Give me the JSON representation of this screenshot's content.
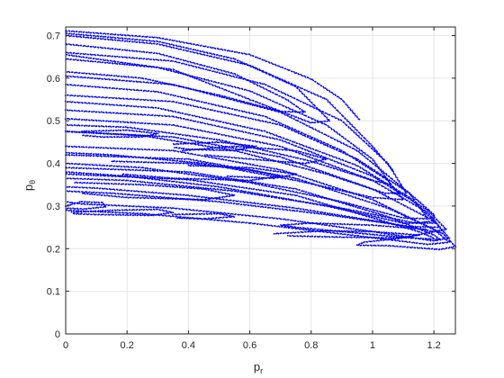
{
  "chart_data": {
    "type": "scatter",
    "title": "",
    "xlabel": "p",
    "xlabel_sub": "r",
    "ylabel": "p",
    "ylabel_sub": "θ",
    "xlim": [
      0,
      1.27
    ],
    "ylim": [
      0,
      0.72
    ],
    "xticks": [
      "0",
      "0.2",
      "0.4",
      "0.6",
      "0.8",
      "1",
      "1.2"
    ],
    "xtick_values": [
      0,
      0.2,
      0.4,
      0.6,
      0.8,
      1.0,
      1.2
    ],
    "yticks": [
      "0",
      "0.1",
      "0.2",
      "0.3",
      "0.4",
      "0.5",
      "0.6",
      "0.7"
    ],
    "ytick_values": [
      0,
      0.1,
      0.2,
      0.3,
      0.4,
      0.5,
      0.6,
      0.7
    ],
    "grid": true,
    "marker_color": "#0000ff",
    "series": [
      {
        "values": [
          [
            0,
            0.711
          ],
          [
            0.3,
            0.695
          ],
          [
            0.6,
            0.655
          ],
          [
            0.8,
            0.598
          ],
          [
            0.9,
            0.55
          ],
          [
            0.96,
            0.5
          ]
        ]
      },
      {
        "values": [
          [
            0,
            0.705
          ],
          [
            0.3,
            0.686
          ],
          [
            0.55,
            0.645
          ],
          [
            0.75,
            0.58
          ],
          [
            0.86,
            0.5
          ],
          [
            0.8,
            0.495
          ],
          [
            0.6,
            0.55
          ],
          [
            0.35,
            0.62
          ],
          [
            0,
            0.655
          ]
        ]
      },
      {
        "values": [
          [
            0,
            0.7
          ],
          [
            0.3,
            0.68
          ],
          [
            0.6,
            0.63
          ],
          [
            0.85,
            0.55
          ],
          [
            1.0,
            0.44
          ],
          [
            1.07,
            0.38
          ]
        ]
      },
      {
        "values": [
          [
            0,
            0.68
          ],
          [
            0.3,
            0.658
          ],
          [
            0.55,
            0.61
          ],
          [
            0.72,
            0.55
          ],
          [
            0.78,
            0.52
          ],
          [
            0.7,
            0.522
          ],
          [
            0.5,
            0.56
          ],
          [
            0.25,
            0.6
          ],
          [
            0,
            0.615
          ]
        ]
      },
      {
        "values": [
          [
            0,
            0.66
          ],
          [
            0.35,
            0.64
          ],
          [
            0.65,
            0.585
          ],
          [
            0.9,
            0.5
          ],
          [
            1.05,
            0.4
          ],
          [
            1.11,
            0.33
          ],
          [
            1.04,
            0.33
          ],
          [
            0.85,
            0.375
          ],
          [
            0.55,
            0.43
          ],
          [
            0.25,
            0.465
          ],
          [
            0,
            0.475
          ]
        ]
      },
      {
        "values": [
          [
            0,
            0.645
          ],
          [
            0.3,
            0.625
          ],
          [
            0.6,
            0.57
          ],
          [
            0.85,
            0.49
          ],
          [
            1.0,
            0.41
          ],
          [
            1.06,
            0.35
          ],
          [
            1.0,
            0.36
          ],
          [
            0.8,
            0.405
          ],
          [
            0.5,
            0.455
          ],
          [
            0.2,
            0.485
          ],
          [
            0,
            0.49
          ]
        ]
      },
      {
        "values": [
          [
            0,
            0.605
          ],
          [
            0.35,
            0.585
          ],
          [
            0.7,
            0.52
          ],
          [
            0.95,
            0.43
          ],
          [
            1.12,
            0.33
          ],
          [
            1.18,
            0.27
          ],
          [
            1.1,
            0.272
          ],
          [
            0.9,
            0.31
          ],
          [
            0.6,
            0.355
          ],
          [
            0.25,
            0.39
          ],
          [
            0,
            0.4
          ]
        ]
      },
      {
        "values": [
          [
            0,
            0.585
          ],
          [
            0.3,
            0.568
          ],
          [
            0.65,
            0.51
          ],
          [
            0.9,
            0.43
          ],
          [
            1.05,
            0.36
          ],
          [
            1.1,
            0.315
          ],
          [
            1.0,
            0.32
          ],
          [
            0.75,
            0.36
          ],
          [
            0.45,
            0.4
          ],
          [
            0.15,
            0.42
          ],
          [
            0,
            0.425
          ]
        ]
      },
      {
        "values": [
          [
            0,
            0.56
          ],
          [
            0.35,
            0.545
          ],
          [
            0.7,
            0.49
          ],
          [
            0.95,
            0.41
          ],
          [
            1.12,
            0.33
          ],
          [
            1.2,
            0.28
          ],
          [
            1.2,
            0.26
          ],
          [
            1.1,
            0.26
          ],
          [
            0.85,
            0.3
          ],
          [
            0.5,
            0.345
          ],
          [
            0.2,
            0.37
          ],
          [
            0,
            0.38
          ]
        ]
      },
      {
        "values": [
          [
            0,
            0.545
          ],
          [
            0.3,
            0.53
          ],
          [
            0.65,
            0.475
          ],
          [
            0.95,
            0.395
          ],
          [
            1.12,
            0.32
          ],
          [
            1.2,
            0.265
          ],
          [
            1.14,
            0.26
          ],
          [
            0.9,
            0.295
          ],
          [
            0.55,
            0.335
          ],
          [
            0.2,
            0.36
          ],
          [
            0,
            0.365
          ]
        ]
      },
      {
        "values": [
          [
            0,
            0.525
          ],
          [
            0.35,
            0.51
          ],
          [
            0.7,
            0.455
          ],
          [
            1.0,
            0.37
          ],
          [
            1.18,
            0.29
          ],
          [
            1.24,
            0.245
          ],
          [
            1.2,
            0.24
          ],
          [
            1.05,
            0.26
          ],
          [
            0.75,
            0.295
          ],
          [
            0.4,
            0.325
          ],
          [
            0.1,
            0.342
          ],
          [
            0,
            0.345
          ]
        ]
      },
      {
        "values": [
          [
            0,
            0.505
          ],
          [
            0.35,
            0.49
          ],
          [
            0.7,
            0.44
          ],
          [
            1.0,
            0.36
          ],
          [
            1.18,
            0.285
          ],
          [
            1.22,
            0.25
          ],
          [
            1.12,
            0.252
          ],
          [
            0.85,
            0.28
          ],
          [
            0.5,
            0.31
          ],
          [
            0.15,
            0.33
          ],
          [
            0,
            0.335
          ]
        ]
      },
      {
        "values": [
          [
            0,
            0.475
          ],
          [
            0.35,
            0.462
          ],
          [
            0.7,
            0.415
          ],
          [
            1.0,
            0.34
          ],
          [
            1.2,
            0.265
          ],
          [
            1.25,
            0.225
          ],
          [
            1.2,
            0.218
          ],
          [
            1.0,
            0.24
          ],
          [
            0.7,
            0.27
          ],
          [
            0.35,
            0.295
          ],
          [
            0.05,
            0.305
          ],
          [
            0,
            0.31
          ]
        ]
      },
      {
        "values": [
          [
            0,
            0.44
          ],
          [
            0.35,
            0.43
          ],
          [
            0.7,
            0.385
          ],
          [
            1.0,
            0.315
          ],
          [
            1.2,
            0.245
          ],
          [
            1.25,
            0.215
          ],
          [
            1.18,
            0.21
          ],
          [
            0.95,
            0.23
          ],
          [
            0.6,
            0.26
          ],
          [
            0.25,
            0.282
          ],
          [
            0,
            0.29
          ]
        ]
      },
      {
        "values": [
          [
            0,
            0.42
          ],
          [
            0.4,
            0.41
          ],
          [
            0.75,
            0.365
          ],
          [
            1.05,
            0.295
          ],
          [
            1.23,
            0.235
          ],
          [
            1.27,
            0.205
          ],
          [
            1.22,
            0.198
          ],
          [
            1.05,
            0.207
          ],
          [
            0.95,
            0.208
          ],
          [
            0.97,
            0.215
          ],
          [
            1.1,
            0.225
          ],
          [
            1.2,
            0.24
          ]
        ]
      },
      {
        "values": [
          [
            0,
            0.39
          ],
          [
            0.4,
            0.38
          ],
          [
            0.75,
            0.34
          ],
          [
            1.05,
            0.275
          ],
          [
            1.2,
            0.232
          ],
          [
            1.22,
            0.222
          ],
          [
            1.12,
            0.225
          ],
          [
            0.9,
            0.24
          ],
          [
            0.75,
            0.25
          ],
          [
            0.7,
            0.255
          ],
          [
            0.8,
            0.26
          ],
          [
            1.0,
            0.255
          ],
          [
            1.18,
            0.245
          ]
        ]
      },
      {
        "values": [
          [
            0,
            0.375
          ],
          [
            0.4,
            0.362
          ],
          [
            0.75,
            0.325
          ],
          [
            1.0,
            0.272
          ],
          [
            1.15,
            0.24
          ],
          [
            1.2,
            0.225
          ]
        ]
      },
      {
        "values": [
          [
            0.05,
            0.475
          ],
          [
            0.2,
            0.478
          ],
          [
            0.3,
            0.47
          ],
          [
            0.25,
            0.462
          ],
          [
            0.12,
            0.462
          ],
          [
            0.05,
            0.466
          ]
        ]
      },
      {
        "values": [
          [
            0.35,
            0.445
          ],
          [
            0.5,
            0.45
          ],
          [
            0.62,
            0.44
          ],
          [
            0.55,
            0.43
          ],
          [
            0.4,
            0.433
          ],
          [
            0.35,
            0.438
          ]
        ]
      },
      {
        "values": [
          [
            0.38,
            0.43
          ],
          [
            0.55,
            0.44
          ],
          [
            0.75,
            0.43
          ],
          [
            0.85,
            0.41
          ],
          [
            0.78,
            0.4
          ],
          [
            0.6,
            0.41
          ],
          [
            0.45,
            0.42
          ]
        ]
      },
      {
        "values": [
          [
            0.15,
            0.405
          ],
          [
            0.4,
            0.4
          ],
          [
            0.6,
            0.385
          ],
          [
            0.7,
            0.37
          ],
          [
            0.6,
            0.36
          ],
          [
            0.35,
            0.365
          ],
          [
            0.18,
            0.375
          ]
        ]
      },
      {
        "values": [
          [
            0.4,
            0.395
          ],
          [
            0.6,
            0.39
          ],
          [
            0.75,
            0.375
          ],
          [
            0.68,
            0.365
          ],
          [
            0.52,
            0.37
          ]
        ]
      },
      {
        "values": [
          [
            0.03,
            0.355
          ],
          [
            0.25,
            0.35
          ],
          [
            0.45,
            0.34
          ],
          [
            0.55,
            0.325
          ],
          [
            0.45,
            0.315
          ],
          [
            0.2,
            0.32
          ],
          [
            0.05,
            0.33
          ]
        ]
      },
      {
        "values": [
          [
            0.0,
            0.3
          ],
          [
            0.05,
            0.31
          ],
          [
            0.12,
            0.308
          ],
          [
            0.13,
            0.298
          ],
          [
            0.06,
            0.293
          ],
          [
            0.0,
            0.295
          ]
        ]
      },
      {
        "values": [
          [
            0.02,
            0.285
          ],
          [
            0.15,
            0.29
          ],
          [
            0.3,
            0.292
          ],
          [
            0.35,
            0.285
          ],
          [
            0.28,
            0.278
          ],
          [
            0.1,
            0.28
          ],
          [
            0.02,
            0.282
          ]
        ]
      },
      {
        "values": [
          [
            0.35,
            0.28
          ],
          [
            0.5,
            0.282
          ],
          [
            0.55,
            0.275
          ],
          [
            0.45,
            0.27
          ],
          [
            0.36,
            0.272
          ]
        ]
      },
      {
        "values": [
          [
            0.68,
            0.235
          ],
          [
            0.85,
            0.242
          ],
          [
            1.0,
            0.24
          ],
          [
            1.15,
            0.232
          ],
          [
            1.08,
            0.225
          ],
          [
            0.9,
            0.227
          ],
          [
            0.72,
            0.23
          ]
        ]
      }
    ]
  }
}
